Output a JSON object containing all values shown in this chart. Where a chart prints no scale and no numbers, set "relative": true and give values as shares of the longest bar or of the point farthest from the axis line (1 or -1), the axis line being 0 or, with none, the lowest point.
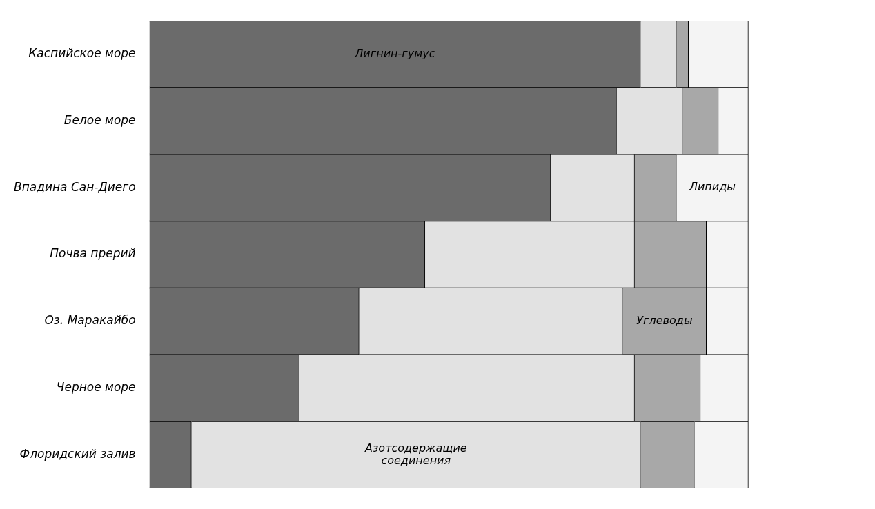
{
  "chart_data": {
    "type": "bar",
    "orientation": "horizontal",
    "stacked": true,
    "relative": true,
    "legend": false,
    "categories": [
      "Каспийское море",
      "Белое море",
      "Впадина Сан-Диего",
      "Почва прерий",
      "Оз. Маракайбо",
      "Черное море",
      "Флоридский залив"
    ],
    "series": [
      {
        "name": "Лигнин-гумус",
        "color": "#6b6b6b",
        "values": [
          0.82,
          0.78,
          0.67,
          0.46,
          0.35,
          0.25,
          0.07
        ]
      },
      {
        "name": "Азотсодержащие соединения",
        "color": "#e2e2e2",
        "values": [
          0.06,
          0.11,
          0.14,
          0.35,
          0.44,
          0.56,
          0.75
        ]
      },
      {
        "name": "Углеводы",
        "color": "#a8a8a8",
        "values": [
          0.02,
          0.06,
          0.07,
          0.12,
          0.14,
          0.11,
          0.09
        ]
      },
      {
        "name": "Липиды",
        "color": "#f4f4f4",
        "values": [
          0.1,
          0.05,
          0.12,
          0.07,
          0.07,
          0.08,
          0.09
        ]
      }
    ]
  }
}
